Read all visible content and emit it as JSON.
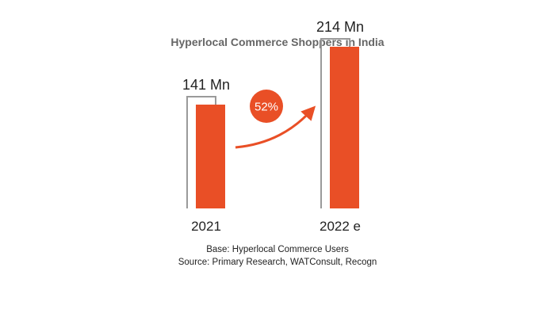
{
  "chart_data": {
    "type": "bar",
    "title": "Hyperlocal Commerce Shoppers in India",
    "categories": [
      "2021",
      "2022 e"
    ],
    "values": [
      141,
      214
    ],
    "value_labels": [
      "141 Mn",
      "214 Mn"
    ],
    "unit": "Mn",
    "growth_label": "52%",
    "ylim": [
      0,
      240
    ],
    "grid": false,
    "legend": "none"
  },
  "footnotes": {
    "base": "Base: Hyperlocal Commerce Users",
    "source": "Source: Primary Research, WATConsult, Recogn"
  },
  "colors": {
    "bar": "#e94f26",
    "outline": "#9a9a9a",
    "text": "#222222",
    "title": "#666666"
  }
}
